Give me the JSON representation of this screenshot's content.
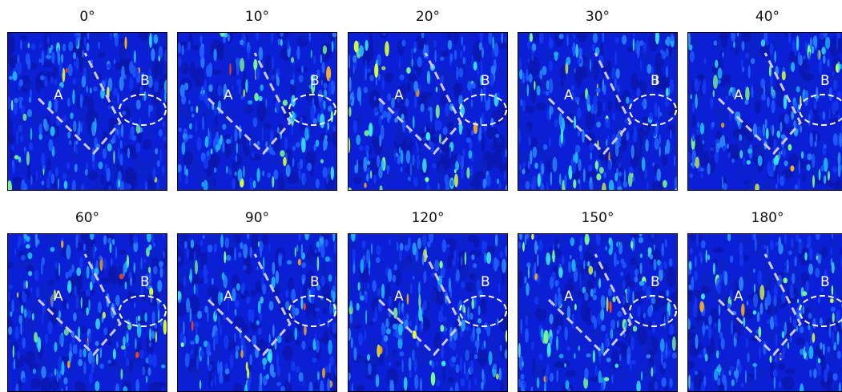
{
  "panels": [
    {
      "title": "0°",
      "label_a": "A",
      "label_b": "B"
    },
    {
      "title": "10°",
      "label_a": "A",
      "label_b": "B"
    },
    {
      "title": "20°",
      "label_a": "A",
      "label_b": "B"
    },
    {
      "title": "30°",
      "label_a": "A",
      "label_b": "B"
    },
    {
      "title": "40°",
      "label_a": "A",
      "label_b": "B"
    },
    {
      "title": "60°",
      "label_a": "A",
      "label_b": "B"
    },
    {
      "title": "90°",
      "label_a": "A",
      "label_b": "B"
    },
    {
      "title": "120°",
      "label_a": "A",
      "label_b": "B"
    },
    {
      "title": "150°",
      "label_a": "A",
      "label_b": "B"
    },
    {
      "title": "180°",
      "label_a": "A",
      "label_b": "B"
    }
  ],
  "colors": {
    "background": "#0a1fd6",
    "dashed_path": "#c9c9ee",
    "ellipse": "#ffffff",
    "label": "#ffffff"
  }
}
